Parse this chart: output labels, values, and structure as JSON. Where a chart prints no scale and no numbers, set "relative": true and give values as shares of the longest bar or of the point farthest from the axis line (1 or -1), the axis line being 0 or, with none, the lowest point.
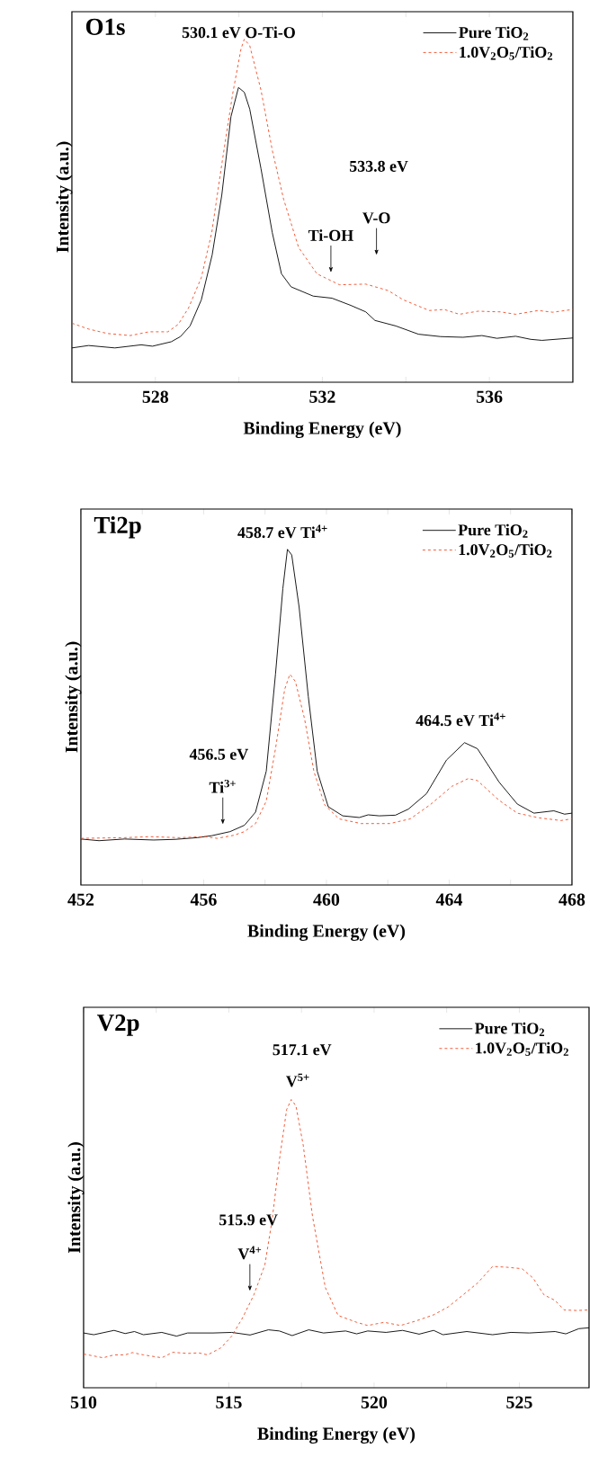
{
  "chart_data": [
    {
      "type": "line",
      "title": "O1s",
      "xlabel": "Binding Energy (eV)",
      "ylabel": "Intensity (a.u.)",
      "relative": true,
      "legend": "top right",
      "xlim": [
        526,
        538
      ],
      "xticks": [
        528,
        {
          "value": 530,
          "label": null
        },
        532,
        {
          "value": 534,
          "label": null
        },
        536
      ],
      "series": [
        {
          "name": "Pure TiO$_{2}$",
          "color": "#000000",
          "line_style": "solid",
          "x": [
            526.0,
            526.4,
            527.03,
            527.66,
            527.93,
            528.38,
            528.6,
            528.83,
            529.1,
            529.36,
            529.59,
            529.81,
            529.99,
            530.13,
            530.26,
            530.53,
            530.8,
            531.02,
            531.25,
            531.78,
            532.23,
            532.68,
            533.04,
            533.26,
            533.76,
            534.3,
            534.83,
            535.37,
            535.82,
            536.18,
            536.63,
            536.99,
            537.26,
            538.0
          ],
          "values": [
            0.1,
            0.107,
            0.1,
            0.109,
            0.105,
            0.118,
            0.133,
            0.164,
            0.24,
            0.371,
            0.545,
            0.774,
            0.859,
            0.845,
            0.796,
            0.622,
            0.436,
            0.316,
            0.278,
            0.251,
            0.245,
            0.224,
            0.205,
            0.18,
            0.164,
            0.14,
            0.133,
            0.131,
            0.136,
            0.128,
            0.134,
            0.125,
            0.122,
            0.129
          ]
        },
        {
          "name": "1.0V$_{2}$O$_{5}$/TiO$_{2}$",
          "color": "#f04a23",
          "line_style": "dashed",
          "x": [
            526.0,
            526.4,
            526.85,
            527.4,
            527.85,
            528.3,
            528.55,
            528.8,
            529.1,
            529.35,
            529.6,
            529.85,
            530.05,
            530.13,
            530.26,
            530.53,
            530.8,
            531.07,
            531.43,
            531.87,
            532.41,
            533.04,
            533.58,
            533.94,
            534.56,
            534.92,
            535.28,
            535.73,
            536.27,
            536.63,
            537.17,
            537.52,
            538.0
          ],
          "values": [
            0.172,
            0.155,
            0.142,
            0.136,
            0.147,
            0.147,
            0.169,
            0.218,
            0.305,
            0.436,
            0.643,
            0.84,
            0.971,
            1.0,
            0.981,
            0.851,
            0.676,
            0.534,
            0.393,
            0.316,
            0.284,
            0.286,
            0.267,
            0.24,
            0.209,
            0.212,
            0.198,
            0.207,
            0.205,
            0.198,
            0.209,
            0.204,
            0.212
          ]
        }
      ],
      "annotations": [
        "530.1 eV O-Ti-O",
        "Ti-OH",
        "533.8 eV",
        "V-O"
      ]
    },
    {
      "type": "line",
      "title": "Ti2p",
      "xlabel": "Binding Energy (eV)",
      "ylabel": "Intensity (a.u.)",
      "relative": true,
      "legend": "top right",
      "xlim": [
        452,
        468
      ],
      "xticks": [
        452,
        {
          "value": 454,
          "label": null
        },
        456,
        {
          "value": 458,
          "label": null
        },
        460,
        {
          "value": 462,
          "label": null
        },
        464,
        {
          "value": 466,
          "label": null
        },
        468
      ],
      "series": [
        {
          "name": "Pure TiO$_{2}$",
          "color": "#000000",
          "line_style": "solid",
          "x": [
            452.0,
            452.59,
            453.42,
            454.37,
            455.08,
            455.79,
            456.27,
            456.86,
            457.33,
            457.69,
            458.04,
            458.34,
            458.58,
            458.73,
            458.87,
            459.11,
            459.41,
            459.7,
            460.06,
            460.53,
            461.07,
            461.36,
            461.72,
            462.25,
            462.67,
            463.26,
            463.91,
            464.5,
            464.92,
            465.63,
            466.22,
            466.76,
            467.41,
            467.76,
            468.0
          ],
          "values": [
            0.137,
            0.132,
            0.137,
            0.134,
            0.136,
            0.141,
            0.147,
            0.159,
            0.178,
            0.217,
            0.339,
            0.628,
            0.883,
            1.0,
            0.983,
            0.828,
            0.561,
            0.339,
            0.233,
            0.206,
            0.201,
            0.209,
            0.206,
            0.208,
            0.226,
            0.272,
            0.372,
            0.424,
            0.406,
            0.306,
            0.241,
            0.214,
            0.221,
            0.211,
            0.214
          ]
        },
        {
          "name": "1.0V$_{2}$O$_{5}$/TiO$_{2}$",
          "color": "#f04a23",
          "line_style": "dashed",
          "x": [
            452.0,
            453.42,
            454.25,
            455.2,
            456.03,
            456.44,
            456.98,
            457.33,
            457.69,
            458.04,
            458.34,
            458.64,
            458.81,
            458.99,
            459.29,
            459.59,
            459.94,
            460.41,
            461.13,
            462.07,
            462.73,
            463.38,
            464.09,
            464.62,
            464.92,
            465.63,
            466.22,
            466.93,
            467.64,
            468.0
          ],
          "values": [
            0.139,
            0.141,
            0.144,
            0.141,
            0.144,
            0.139,
            0.148,
            0.159,
            0.183,
            0.25,
            0.406,
            0.583,
            0.628,
            0.606,
            0.494,
            0.339,
            0.239,
            0.197,
            0.183,
            0.183,
            0.197,
            0.239,
            0.294,
            0.317,
            0.311,
            0.252,
            0.214,
            0.2,
            0.192,
            0.197
          ]
        }
      ],
      "annotations": [
        "458.7 eV Ti$^{4+}$",
        "464.5 eV Ti$^{4+}$",
        "456.5 eV",
        "Ti$^{3+}$"
      ]
    },
    {
      "type": "line",
      "title": "V2p",
      "xlabel": "Binding Energy (eV)",
      "ylabel": "Intensity (a.u.)",
      "relative": true,
      "legend": "top right",
      "xlim": [
        510,
        527.4
      ],
      "xticks": [
        510,
        {
          "value": 512.5,
          "label": null
        },
        515,
        {
          "value": 517.5,
          "label": null
        },
        520,
        {
          "value": 522.5,
          "label": null
        },
        525
      ],
      "series": [
        {
          "name": "Pure TiO$_{2}$",
          "color": "#000000",
          "line_style": "solid",
          "x": [
            510.0,
            510.35,
            511.05,
            511.43,
            511.75,
            512.06,
            512.69,
            513.2,
            513.58,
            514.46,
            515.1,
            515.73,
            516.36,
            516.74,
            517.18,
            517.75,
            518.26,
            519.02,
            519.4,
            519.78,
            520.41,
            520.98,
            521.55,
            522.05,
            522.37,
            523.19,
            524.08,
            524.71,
            525.34,
            526.23,
            526.6,
            527.05,
            527.4
          ],
          "values": [
            0.19,
            0.184,
            0.199,
            0.188,
            0.195,
            0.184,
            0.192,
            0.179,
            0.19,
            0.19,
            0.192,
            0.183,
            0.201,
            0.197,
            0.181,
            0.201,
            0.19,
            0.197,
            0.187,
            0.197,
            0.192,
            0.199,
            0.186,
            0.199,
            0.184,
            0.195,
            0.184,
            0.192,
            0.19,
            0.195,
            0.187,
            0.205,
            0.208
          ]
        },
        {
          "name": "1.0V$_{2}$O$_{5}$/TiO$_{2}$",
          "color": "#f04a23",
          "line_style": "dashed",
          "x": [
            510.0,
            510.67,
            511.05,
            511.43,
            511.68,
            512.06,
            512.69,
            513.07,
            513.58,
            513.96,
            514.27,
            514.72,
            515.1,
            515.48,
            515.86,
            516.24,
            516.49,
            516.74,
            516.99,
            517.15,
            517.31,
            517.56,
            517.88,
            518.32,
            518.76,
            519.4,
            519.78,
            520.35,
            520.91,
            521.42,
            522.05,
            522.56,
            523.06,
            523.57,
            524.08,
            524.58,
            525.09,
            525.47,
            525.85,
            526.23,
            526.54,
            526.98,
            527.4
          ],
          "values": [
            0.117,
            0.104,
            0.114,
            0.114,
            0.122,
            0.114,
            0.104,
            0.123,
            0.119,
            0.121,
            0.114,
            0.138,
            0.179,
            0.244,
            0.322,
            0.426,
            0.582,
            0.79,
            0.965,
            1.0,
            0.978,
            0.842,
            0.595,
            0.348,
            0.251,
            0.227,
            0.216,
            0.227,
            0.216,
            0.231,
            0.253,
            0.281,
            0.322,
            0.364,
            0.421,
            0.418,
            0.413,
            0.381,
            0.322,
            0.303,
            0.27,
            0.268,
            0.27
          ]
        }
      ],
      "annotations": [
        "517.1 eV",
        "V$^{5+}$",
        "515.9 eV",
        "V$^{4+}$"
      ]
    }
  ]
}
